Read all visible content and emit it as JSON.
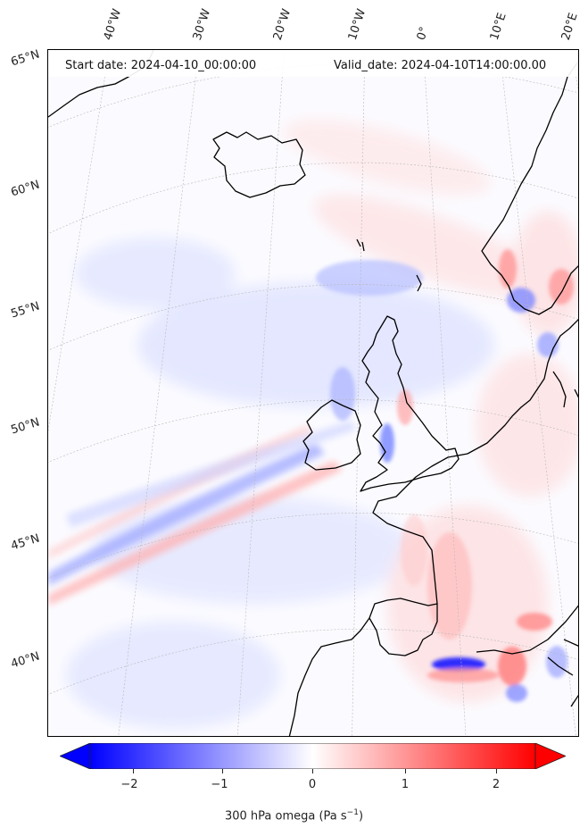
{
  "header": {
    "start_date": "Start date: 2024-04-10_00:00:00",
    "valid_date": "Valid_date: 2024-04-10T14:00:00.00"
  },
  "longitude_labels": [
    "40°W",
    "30°W",
    "20°W",
    "10°W",
    "0°",
    "10°E",
    "20°E"
  ],
  "latitude_labels": [
    "65°N",
    "60°N",
    "55°N",
    "50°N",
    "45°N",
    "40°N"
  ],
  "colorbar": {
    "label_text": "300 hPa omega (Pa s",
    "label_sup": "−1",
    "label_close": ")",
    "ticks": [
      "−2",
      "−1",
      "0",
      "1",
      "2"
    ],
    "tick_values": [
      -2,
      -1,
      0,
      1,
      2
    ],
    "range": [
      -2.6,
      2.6
    ],
    "extend": "both",
    "colormap": "bwr",
    "color_low": "#0000ff",
    "color_mid": "#ffffff",
    "color_high": "#ff0000"
  },
  "map": {
    "field": "300 hPa omega",
    "projection": "lambert-conformal",
    "gridlines": "dotted",
    "coastline_color": "#000000"
  }
}
